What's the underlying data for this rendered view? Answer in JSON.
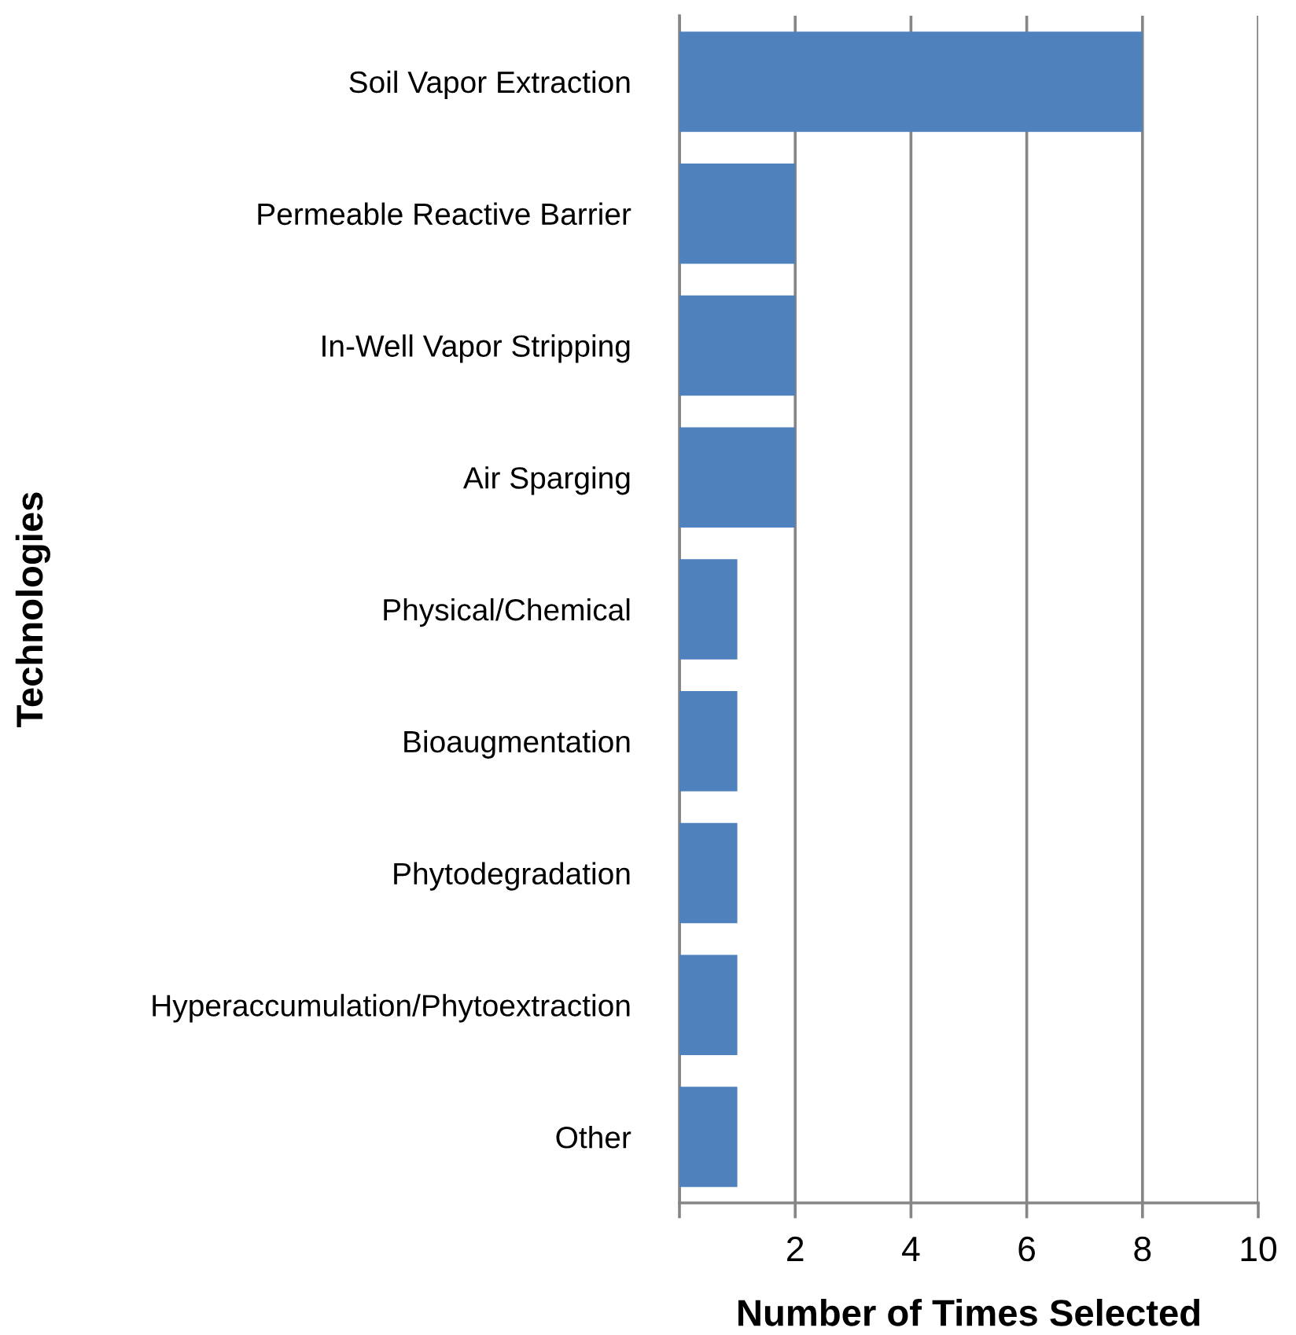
{
  "chart_data": {
    "type": "bar",
    "orientation": "horizontal",
    "categories": [
      "Soil Vapor Extraction",
      "Permeable Reactive Barrier",
      "In-Well Vapor Stripping",
      "Air Sparging",
      "Physical/Chemical",
      "Bioaugmentation",
      "Phytodegradation",
      "Hyperaccumulation/Phytoextraction",
      "Other"
    ],
    "values": [
      8,
      2,
      2,
      2,
      1,
      1,
      1,
      1,
      1
    ],
    "color": "#4f81bd",
    "xlabel": "Number of Times Selected",
    "ylabel": "Technologies",
    "xlim": [
      0,
      10
    ],
    "xticks": [
      {
        "value": 0,
        "label": null
      },
      2,
      4,
      6,
      8,
      10
    ],
    "grid": "x",
    "legend": false
  }
}
